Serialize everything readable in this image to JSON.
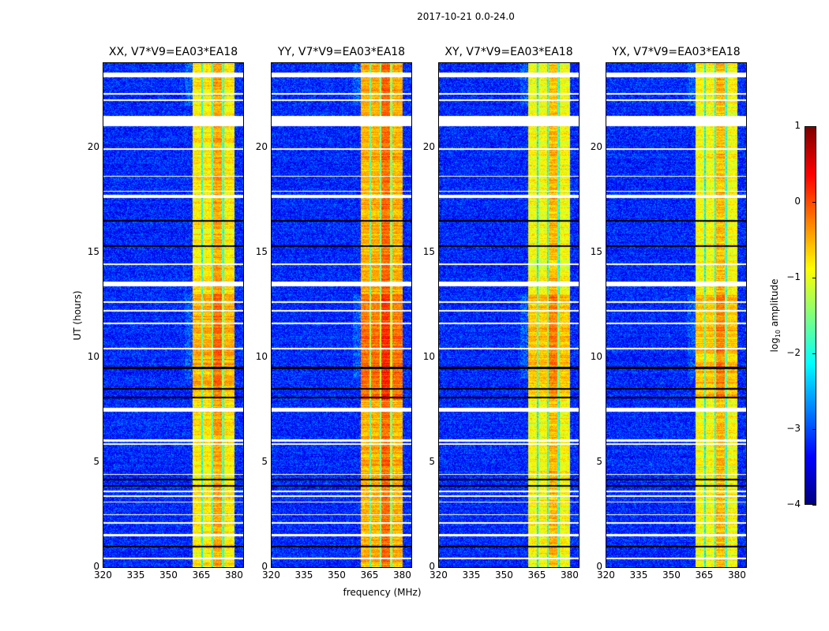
{
  "chart_data": {
    "type": "heatmap",
    "title": "2017-10-21 0.0-24.0",
    "xlabel": "frequency (MHz)",
    "ylabel": "UT (hours)",
    "xlim": [
      320,
      384
    ],
    "ylim": [
      0,
      24
    ],
    "xticks": [
      320,
      335,
      350,
      365,
      380
    ],
    "yticks": [
      0,
      5,
      10,
      15,
      20
    ],
    "panels": [
      {
        "title": "XX, V7*V9=EA03*EA18",
        "band_level": -0.8
      },
      {
        "title": "YY, V7*V9=EA03*EA18",
        "band_level": -0.5
      },
      {
        "title": "XY, V7*V9=EA03*EA18",
        "band_level": -0.9
      },
      {
        "title": "YX, V7*V9=EA03*EA18",
        "band_level": -0.9
      }
    ],
    "rfi_band_mhz": [
      360.5,
      380
    ],
    "rfi_subband_gaps_mhz": [
      365,
      369.6,
      374.6
    ],
    "background_level": -3.2,
    "flagged_hours": [
      [
        23.35,
        23.55
      ],
      [
        22.5,
        22.58
      ],
      [
        22.2,
        22.28
      ],
      [
        21.0,
        21.5
      ],
      [
        19.9,
        19.97
      ],
      [
        18.6,
        18.66
      ],
      [
        17.9,
        17.95
      ],
      [
        17.6,
        17.75
      ],
      [
        14.4,
        14.48
      ],
      [
        13.4,
        13.6
      ],
      [
        12.6,
        12.66
      ],
      [
        12.2,
        12.28
      ],
      [
        11.6,
        11.66
      ],
      [
        10.4,
        10.45
      ],
      [
        7.4,
        7.6
      ],
      [
        6.0,
        6.1
      ],
      [
        5.85,
        5.9
      ],
      [
        4.4,
        4.45
      ],
      [
        3.6,
        3.65
      ],
      [
        3.35,
        3.45
      ],
      [
        3.1,
        3.15
      ],
      [
        2.5,
        2.55
      ],
      [
        2.1,
        2.15
      ],
      [
        1.5,
        1.58
      ],
      [
        0.4,
        0.47
      ]
    ],
    "dark_hours": [
      16.5,
      15.3,
      9.5,
      8.5,
      8.1,
      4.2,
      3.9,
      1.0
    ],
    "colorbar": {
      "label": "log",
      "label_sub": "10",
      "label_rest": " amplitude",
      "range": [
        -4,
        1
      ],
      "ticks": [
        1,
        0,
        -1,
        -2,
        -3,
        -4
      ],
      "tick_labels": [
        "1",
        "0",
        "−1",
        "−2",
        "−3",
        "−4"
      ],
      "colormap": "jet"
    }
  }
}
